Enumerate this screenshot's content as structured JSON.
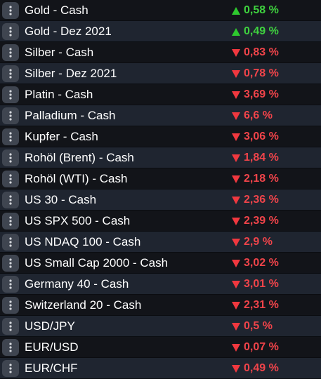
{
  "colors": {
    "positive": "#3fd23f",
    "negative": "#f0444a",
    "row_alt": "#1f2530",
    "row_plain": "#121419"
  },
  "icons": {
    "menu": "more-vertical-icon",
    "up": "triangle-up-icon",
    "down": "triangle-down-icon"
  },
  "instruments": [
    {
      "name": "Gold - Cash",
      "change": "0,58 %",
      "direction": "up"
    },
    {
      "name": "Gold - Dez 2021",
      "change": "0,49 %",
      "direction": "up"
    },
    {
      "name": "Silber - Cash",
      "change": "0,83 %",
      "direction": "down"
    },
    {
      "name": "Silber - Dez 2021",
      "change": "0,78 %",
      "direction": "down"
    },
    {
      "name": "Platin - Cash",
      "change": "3,69 %",
      "direction": "down"
    },
    {
      "name": "Palladium - Cash",
      "change": "6,6 %",
      "direction": "down"
    },
    {
      "name": "Kupfer - Cash",
      "change": "3,06 %",
      "direction": "down"
    },
    {
      "name": "Rohöl (Brent) - Cash",
      "change": "1,84 %",
      "direction": "down"
    },
    {
      "name": "Rohöl (WTI) - Cash",
      "change": "2,18 %",
      "direction": "down"
    },
    {
      "name": "US 30 - Cash",
      "change": "2,36 %",
      "direction": "down"
    },
    {
      "name": "US SPX 500 - Cash",
      "change": "2,39 %",
      "direction": "down"
    },
    {
      "name": "US NDAQ 100 - Cash",
      "change": "2,9 %",
      "direction": "down"
    },
    {
      "name": "US Small Cap 2000 - Cash",
      "change": "3,02 %",
      "direction": "down"
    },
    {
      "name": "Germany 40 - Cash",
      "change": "3,01 %",
      "direction": "down"
    },
    {
      "name": "Switzerland 20 - Cash",
      "change": "2,31 %",
      "direction": "down"
    },
    {
      "name": "USD/JPY",
      "change": "0,5 %",
      "direction": "down"
    },
    {
      "name": "EUR/USD",
      "change": "0,07 %",
      "direction": "down"
    },
    {
      "name": "EUR/CHF",
      "change": "0,49 %",
      "direction": "down"
    }
  ]
}
